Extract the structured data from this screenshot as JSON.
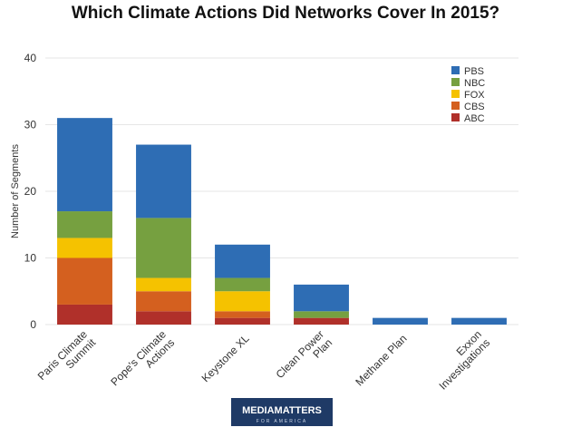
{
  "chart_data": {
    "type": "stacked_bar",
    "title": "Which Climate Actions Did Networks Cover In 2015?",
    "y_label": "Number of Segments",
    "categories": [
      [
        "Paris Climate",
        "Summit"
      ],
      [
        "Pope's Climate",
        "Actions"
      ],
      [
        "Keystone XL"
      ],
      [
        "Clean Power",
        "Plan"
      ],
      [
        "Methane Plan"
      ],
      [
        "Exxon",
        "Investigations"
      ]
    ],
    "series": [
      {
        "name": "ABC",
        "color": "#b0302a",
        "values": [
          3,
          2,
          1,
          1,
          0,
          0
        ]
      },
      {
        "name": "CBS",
        "color": "#d4601f",
        "values": [
          7,
          3,
          1,
          0,
          0,
          0
        ]
      },
      {
        "name": "FOX",
        "color": "#f5c200",
        "values": [
          3,
          2,
          3,
          0,
          0,
          0
        ]
      },
      {
        "name": "NBC",
        "color": "#76a040",
        "values": [
          4,
          9,
          2,
          1,
          0,
          0
        ]
      },
      {
        "name": "PBS",
        "color": "#2e6db4",
        "values": [
          14,
          11,
          5,
          4,
          1,
          1
        ]
      }
    ],
    "ylim": [
      0,
      40
    ],
    "yticks": [
      0,
      10,
      20,
      30,
      40
    ],
    "grid": true,
    "legend": "top-right"
  },
  "logo": {
    "main": "MEDIAMATTERS",
    "sub": "FOR AMERICA"
  }
}
